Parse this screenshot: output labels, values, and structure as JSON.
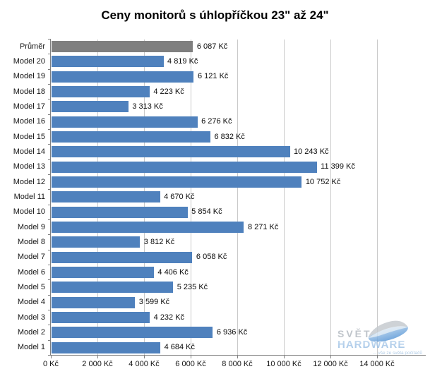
{
  "chart_data": {
    "type": "bar",
    "orientation": "horizontal",
    "title": "Ceny monitorů s úhlopříčkou 23\" až 24\"",
    "categories": [
      "Průměr",
      "Model 20",
      "Model 19",
      "Model 18",
      "Model 17",
      "Model 16",
      "Model 15",
      "Model 14",
      "Model 13",
      "Model 12",
      "Model 11",
      "Model 10",
      "Model 9",
      "Model 8",
      "Model 7",
      "Model 6",
      "Model 5",
      "Model 4",
      "Model 3",
      "Model 2",
      "Model 1"
    ],
    "values": [
      6087,
      4819,
      6121,
      4223,
      3313,
      6276,
      6832,
      10243,
      11399,
      10752,
      4670,
      5854,
      8271,
      3812,
      6058,
      4406,
      5235,
      3599,
      4232,
      6936,
      4684
    ],
    "value_labels": [
      "6 087 Kč",
      "4 819 Kč",
      "6 121 Kč",
      "4 223 Kč",
      "3 313 Kč",
      "6 276 Kč",
      "6 832 Kč",
      "10 243 Kč",
      "11 399 Kč",
      "10 752 Kč",
      "4 670 Kč",
      "5 854 Kč",
      "8 271 Kč",
      "3 812 Kč",
      "6 058 Kč",
      "4 406 Kč",
      "5 235 Kč",
      "3 599 Kč",
      "4 232 Kč",
      "6 936 Kč",
      "4 684 Kč"
    ],
    "x_ticks": [
      0,
      2000,
      4000,
      6000,
      8000,
      10000,
      12000,
      14000
    ],
    "x_tick_labels": [
      "0 Kč",
      "2 000 Kč",
      "4 000 Kč",
      "6 000 Kč",
      "8 000 Kč",
      "10 000 Kč",
      "12 000 Kč",
      "14 000 Kč"
    ],
    "xlim": [
      0,
      16000
    ],
    "grid": "vertical major gridlines on",
    "legend": "none",
    "bar_color": "#4F81BD",
    "average_bar_color": "#7F7F7F",
    "unit": "Kč"
  },
  "watermark": {
    "line1": "SVĚT",
    "line2": "HARDWARE",
    "tagline": "... vše ze světa počítačů"
  }
}
